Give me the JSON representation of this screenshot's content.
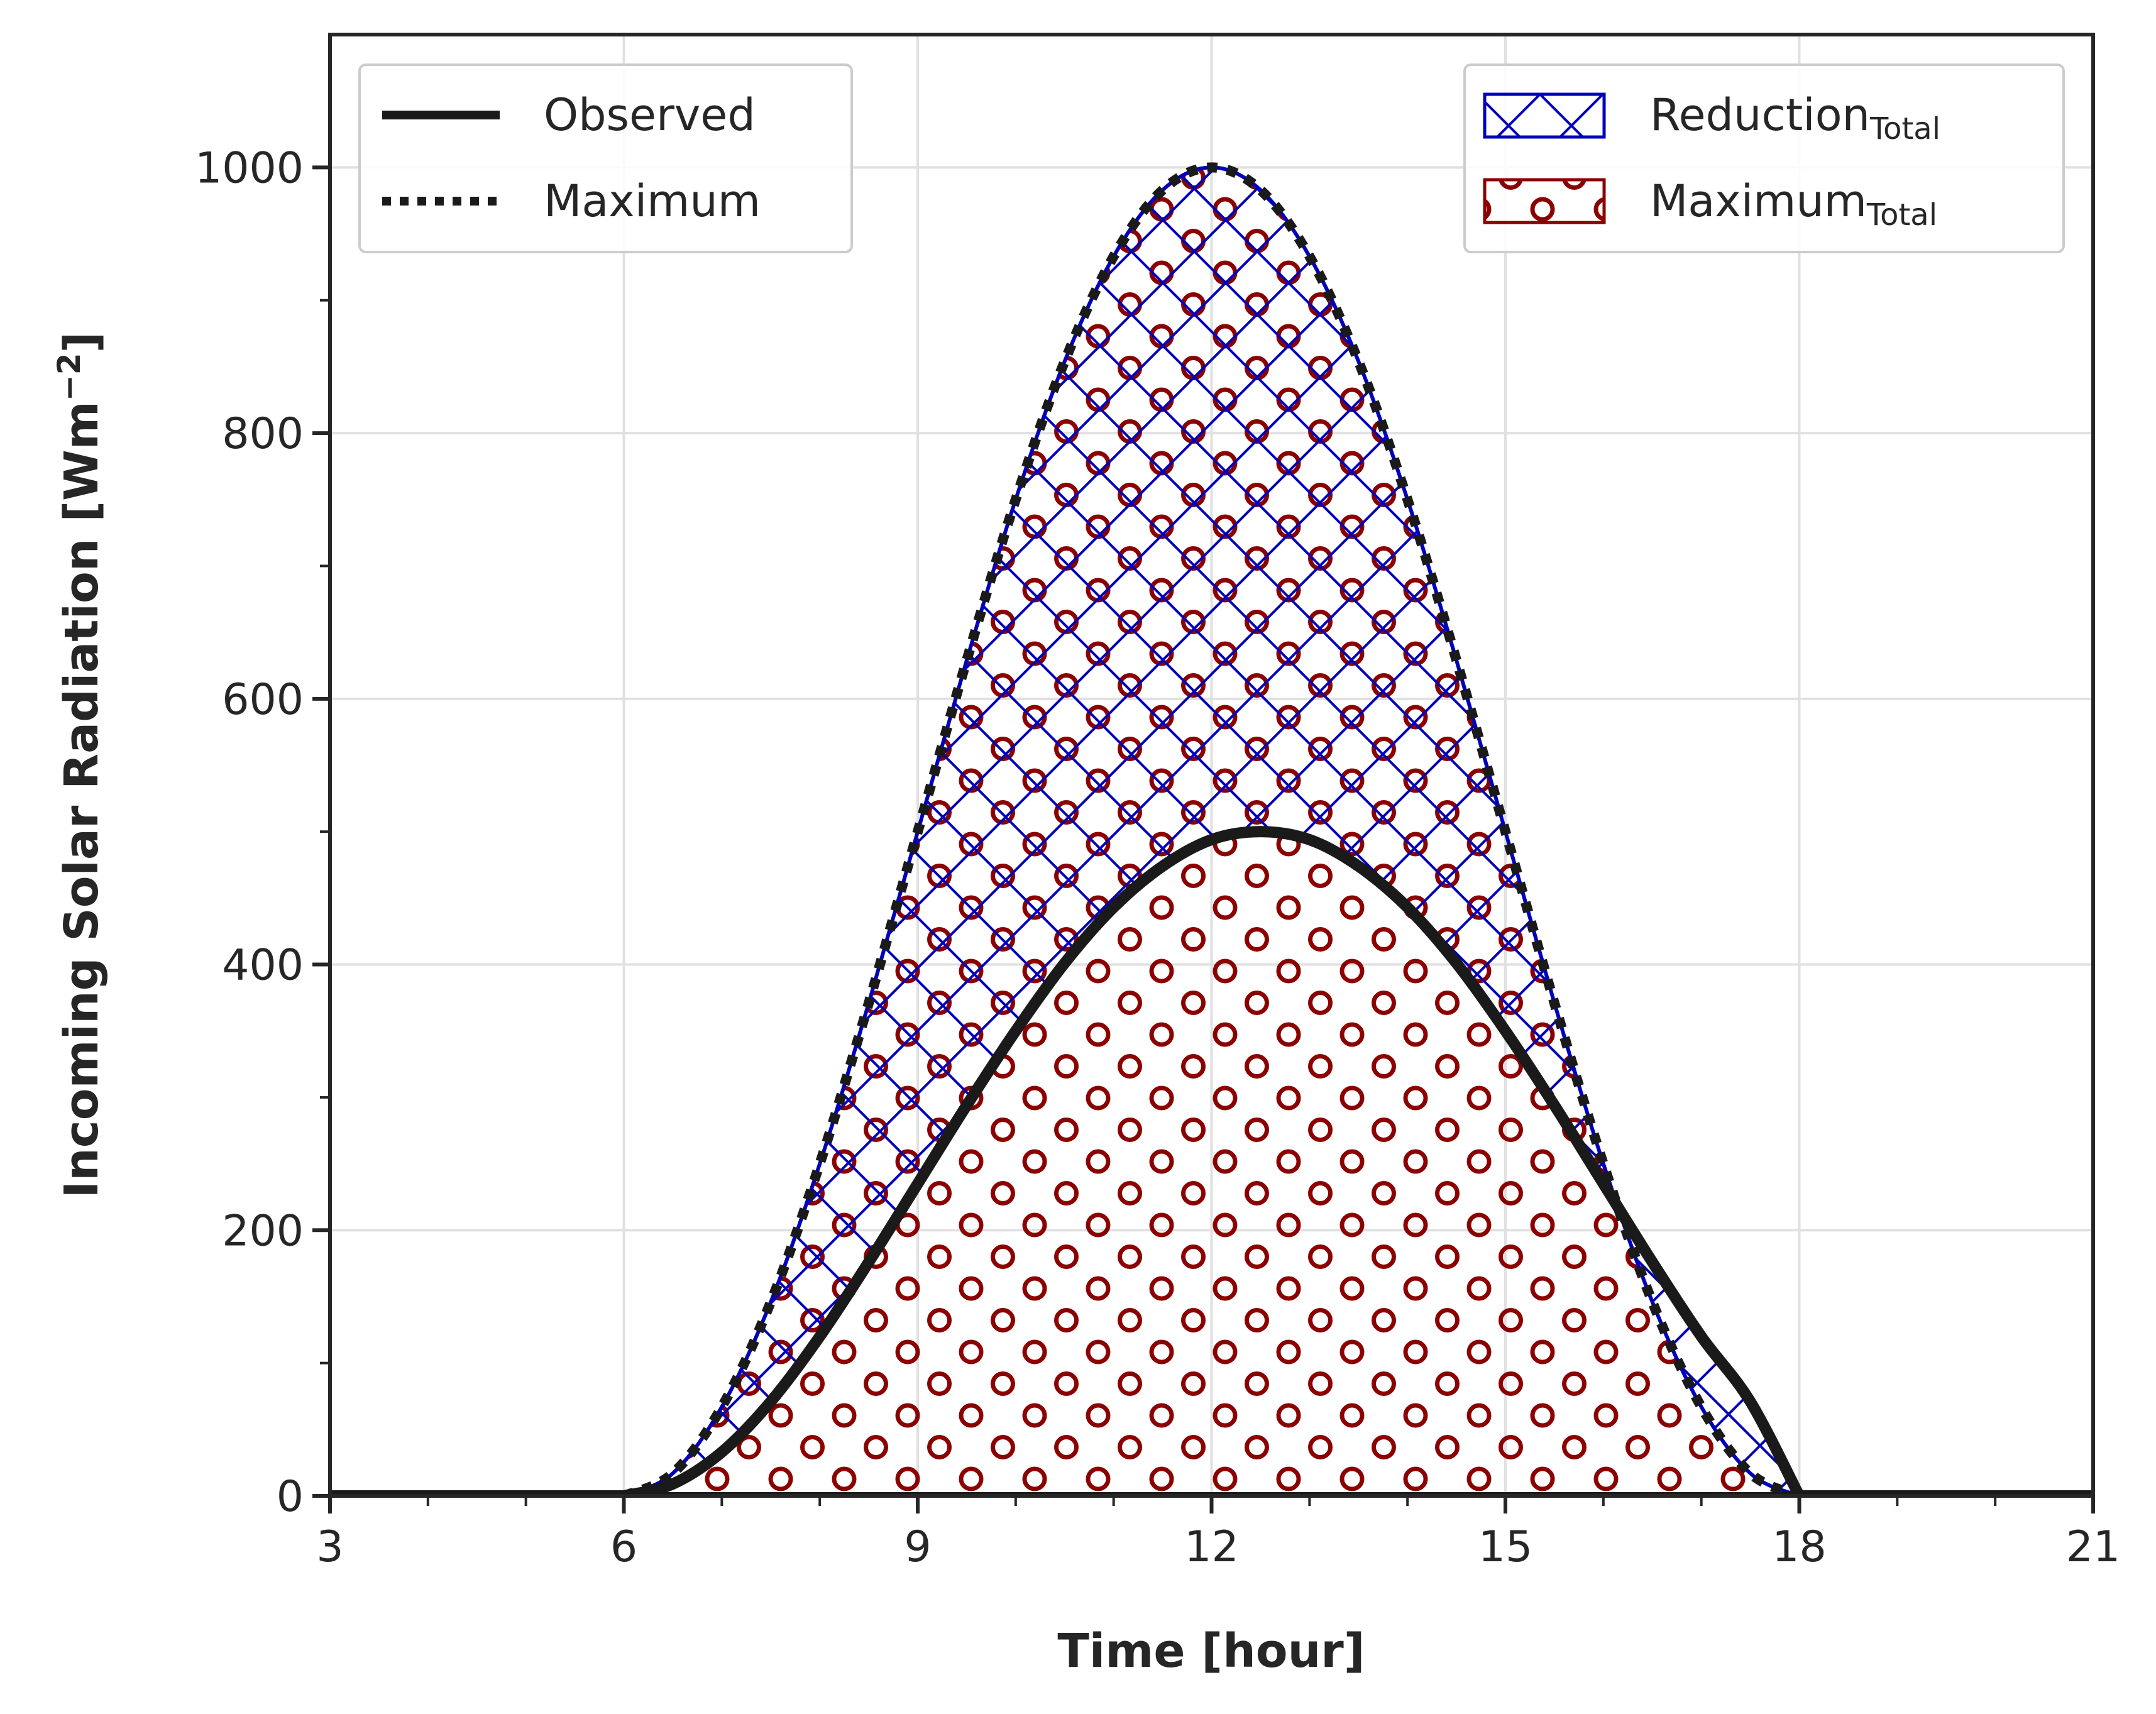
{
  "chart_data": {
    "type": "area",
    "xlabel": "Time [hour]",
    "ylabel": "Incoming Solar Radiation [Wm",
    "ylabel_sup": "−2",
    "ylabel_close": "]",
    "xlim": [
      3,
      21
    ],
    "ylim": [
      0,
      1100
    ],
    "xticks": [
      3,
      6,
      9,
      12,
      15,
      18,
      21
    ],
    "yticks": [
      0,
      200,
      400,
      600,
      800,
      1000
    ],
    "grid": true,
    "series": [
      {
        "name": "Observed",
        "style": "solid",
        "color": "#1a1a1a",
        "x": [
          6,
          6.5,
          7,
          7.5,
          8,
          8.5,
          9,
          9.5,
          10,
          10.5,
          11,
          11.5,
          12,
          12.5,
          13,
          13.5,
          14,
          14.5,
          15,
          15.5,
          16,
          16.5,
          17,
          17.5,
          18
        ],
        "values": [
          0,
          9,
          33,
          71,
          120,
          176,
          235,
          294,
          350,
          401,
          443,
          474,
          494,
          500,
          494,
          474,
          443,
          401,
          350,
          294,
          235,
          176,
          120,
          71,
          0
        ]
      },
      {
        "name": "Maximum",
        "style": "dotted",
        "color": "#1a1a1a",
        "x": [
          6,
          6.5,
          7,
          7.5,
          8,
          8.5,
          9,
          9.5,
          10,
          10.5,
          11,
          11.5,
          12,
          12.5,
          13,
          13.5,
          14,
          14.5,
          15,
          15.5,
          16,
          16.5,
          17,
          17.5,
          18
        ],
        "values": [
          0,
          17,
          67,
          146,
          250,
          371,
          500,
          629,
          750,
          854,
          933,
          983,
          1000,
          983,
          933,
          854,
          750,
          629,
          500,
          371,
          250,
          146,
          67,
          17,
          0
        ]
      }
    ],
    "fills": [
      {
        "name": "Reduction",
        "name_sub": "Total",
        "between": [
          "Observed",
          "Maximum"
        ],
        "hatch": "x",
        "color": "#0000bb"
      },
      {
        "name": "Maximum",
        "name_sub": "Total",
        "between": [
          "zero",
          "Maximum"
        ],
        "hatch": "o",
        "color": "#8b0000"
      }
    ],
    "legends": [
      {
        "placement": "top-left",
        "entries": [
          "Observed",
          "Maximum"
        ]
      },
      {
        "placement": "top-right",
        "entries": [
          "Reduction",
          "Maximum"
        ]
      }
    ]
  }
}
